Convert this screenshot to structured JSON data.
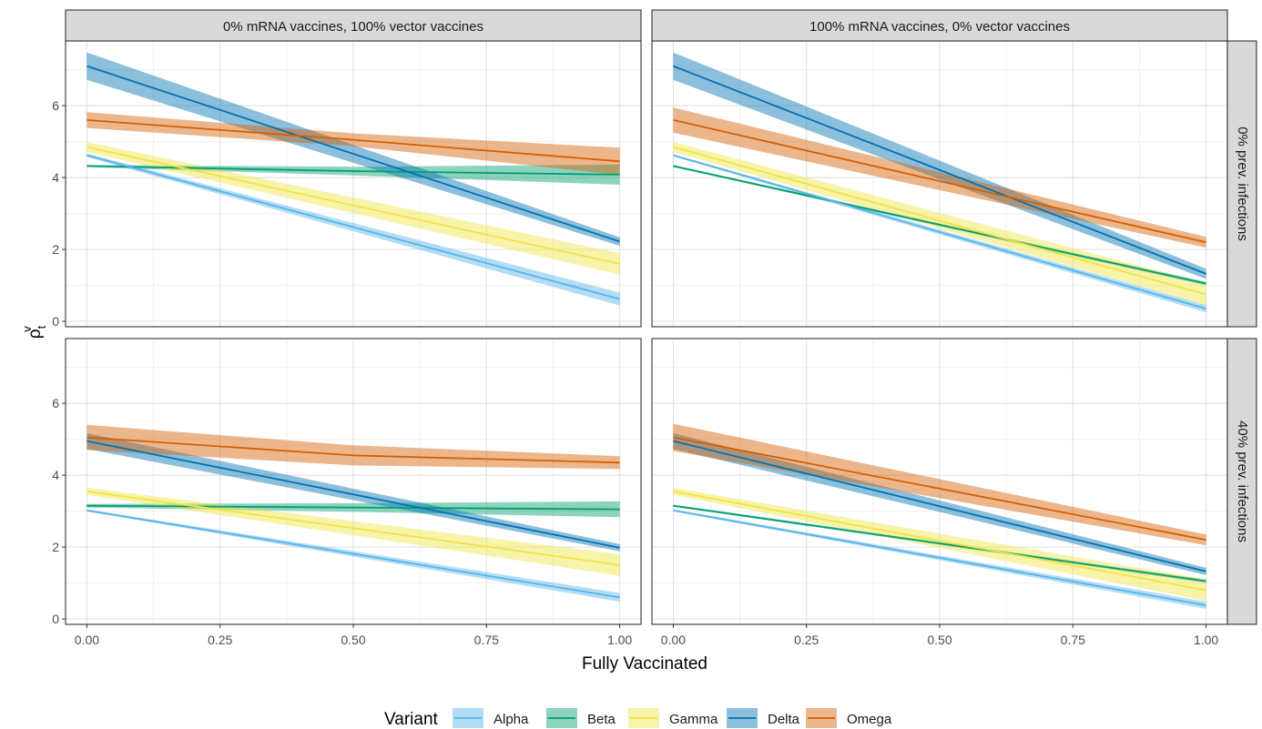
{
  "chart_data": {
    "type": "line",
    "xlabel": "Fully Vaccinated",
    "ylabel": {
      "base": "ρ",
      "sub": "t",
      "sup": "v"
    },
    "xlim": [
      -0.04,
      1.04
    ],
    "ylim": [
      -0.15,
      7.8
    ],
    "x_ticks": [
      0,
      0.25,
      0.5,
      0.75,
      1
    ],
    "x_tick_labels": [
      "0.00",
      "0.25",
      "0.50",
      "0.75",
      "1.00"
    ],
    "y_ticks": [
      0,
      2,
      4,
      6
    ],
    "y_tick_labels": [
      "0",
      "2",
      "4",
      "6"
    ],
    "grid": true,
    "columns": [
      "0% mRNA vaccines, 100% vector vaccines",
      "100% mRNA vaccines, 0% vector vaccines"
    ],
    "rows": [
      "0% prev. infections",
      "40% prev. infections"
    ],
    "legend": {
      "title": "Variant",
      "position": "bottom",
      "entries": [
        {
          "name": "Alpha",
          "color": "#56B4E9"
        },
        {
          "name": "Beta",
          "color": "#009E73"
        },
        {
          "name": "Gamma",
          "color": "#F0E442"
        },
        {
          "name": "Delta",
          "color": "#0072B2"
        },
        {
          "name": "Omega",
          "color": "#D55E00"
        }
      ]
    },
    "panels": [
      {
        "column": 0,
        "row": 0,
        "series": [
          {
            "name": "Alpha",
            "x": [
              0,
              1
            ],
            "y": [
              4.62,
              0.62
            ],
            "ribbon_half_width": [
              0.05,
              0.18
            ]
          },
          {
            "name": "Beta",
            "x": [
              0,
              0.5,
              1
            ],
            "y": [
              4.32,
              4.18,
              4.08
            ],
            "ribbon_half_width": [
              0.03,
              0.12,
              0.28
            ]
          },
          {
            "name": "Gamma",
            "x": [
              0,
              1
            ],
            "y": [
              4.85,
              1.6
            ],
            "ribbon_half_width": [
              0.14,
              0.3
            ]
          },
          {
            "name": "Delta",
            "x": [
              0,
              1
            ],
            "y": [
              7.1,
              2.22
            ],
            "ribbon_half_width": [
              0.38,
              0.12
            ]
          },
          {
            "name": "Omega",
            "x": [
              0,
              0.5,
              1
            ],
            "y": [
              5.6,
              5.05,
              4.45
            ],
            "ribbon_half_width": [
              0.22,
              0.18,
              0.38
            ]
          }
        ]
      },
      {
        "column": 1,
        "row": 0,
        "series": [
          {
            "name": "Alpha",
            "x": [
              0,
              1
            ],
            "y": [
              4.62,
              0.35
            ],
            "ribbon_half_width": [
              0.03,
              0.1
            ]
          },
          {
            "name": "Beta",
            "x": [
              0,
              1
            ],
            "y": [
              4.32,
              1.05
            ],
            "ribbon_half_width": [
              0.03,
              0.05
            ]
          },
          {
            "name": "Gamma",
            "x": [
              0,
              1
            ],
            "y": [
              4.85,
              0.75
            ],
            "ribbon_half_width": [
              0.14,
              0.3
            ]
          },
          {
            "name": "Delta",
            "x": [
              0,
              1
            ],
            "y": [
              7.1,
              1.32
            ],
            "ribbon_half_width": [
              0.38,
              0.14
            ]
          },
          {
            "name": "Omega",
            "x": [
              0,
              1
            ],
            "y": [
              5.6,
              2.2
            ],
            "ribbon_half_width": [
              0.35,
              0.15
            ]
          }
        ]
      },
      {
        "column": 0,
        "row": 1,
        "series": [
          {
            "name": "Alpha",
            "x": [
              0,
              1
            ],
            "y": [
              3.02,
              0.6
            ],
            "ribbon_half_width": [
              0.03,
              0.12
            ]
          },
          {
            "name": "Beta",
            "x": [
              0,
              0.5,
              1
            ],
            "y": [
              3.15,
              3.1,
              3.05
            ],
            "ribbon_half_width": [
              0.05,
              0.12,
              0.22
            ]
          },
          {
            "name": "Gamma",
            "x": [
              0,
              1
            ],
            "y": [
              3.55,
              1.5
            ],
            "ribbon_half_width": [
              0.1,
              0.3
            ]
          },
          {
            "name": "Delta",
            "x": [
              0,
              1
            ],
            "y": [
              4.95,
              1.98
            ],
            "ribbon_half_width": [
              0.22,
              0.1
            ]
          },
          {
            "name": "Omega",
            "x": [
              0,
              0.5,
              1
            ],
            "y": [
              5.05,
              4.55,
              4.35
            ],
            "ribbon_half_width": [
              0.35,
              0.28,
              0.18
            ]
          }
        ]
      },
      {
        "column": 1,
        "row": 1,
        "series": [
          {
            "name": "Alpha",
            "x": [
              0,
              1
            ],
            "y": [
              3.02,
              0.38
            ],
            "ribbon_half_width": [
              0.03,
              0.1
            ]
          },
          {
            "name": "Beta",
            "x": [
              0,
              1
            ],
            "y": [
              3.15,
              1.05
            ],
            "ribbon_half_width": [
              0.03,
              0.05
            ]
          },
          {
            "name": "Gamma",
            "x": [
              0,
              1
            ],
            "y": [
              3.55,
              0.8
            ],
            "ribbon_half_width": [
              0.1,
              0.3
            ]
          },
          {
            "name": "Delta",
            "x": [
              0,
              1
            ],
            "y": [
              4.95,
              1.32
            ],
            "ribbon_half_width": [
              0.22,
              0.1
            ]
          },
          {
            "name": "Omega",
            "x": [
              0,
              1
            ],
            "y": [
              5.05,
              2.2
            ],
            "ribbon_half_width": [
              0.38,
              0.15
            ]
          }
        ]
      }
    ]
  }
}
